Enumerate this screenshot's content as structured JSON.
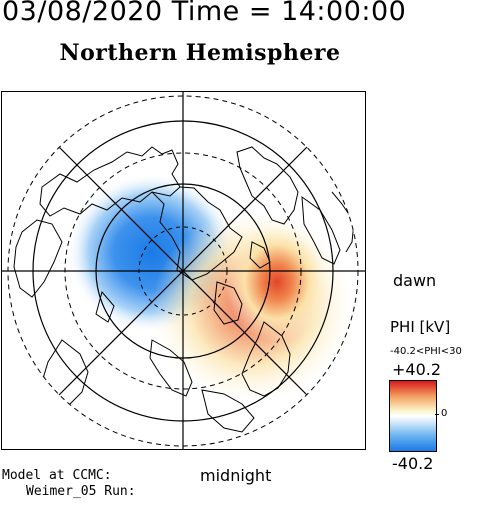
{
  "header": {
    "title": "03/08/2020 Time = 14:00:00"
  },
  "map": {
    "title": "Northern Hemisphere",
    "dawn_label": "dawn",
    "midnight_label": "midnight"
  },
  "legend": {
    "quantity_label": "PHI [kV]",
    "range_text": "-40.2<PHI<30",
    "max_label": "+40.2",
    "zero_label": "0",
    "min_label": "-40.2",
    "colors": {
      "positive": "#d7191c",
      "zero": "#ffffff",
      "negative": "#1a7ae6"
    }
  },
  "credits": {
    "line1": "Model at CCMC:",
    "line2": "Weimer_05 Run:"
  }
}
